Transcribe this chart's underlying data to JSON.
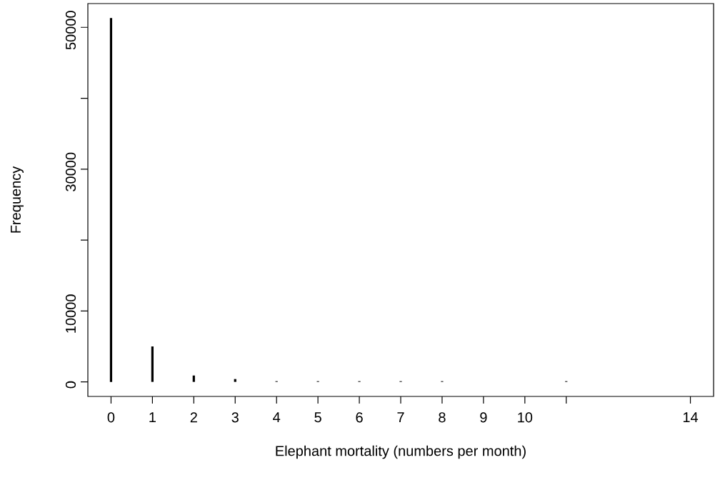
{
  "chart_data": {
    "type": "bar",
    "xlabel": "Elephant mortality (numbers per month)",
    "ylabel": "Frequency",
    "x": [
      0,
      1,
      2,
      3,
      4,
      5,
      6,
      7,
      8,
      11
    ],
    "values": [
      51300,
      5000,
      900,
      400,
      100,
      100,
      100,
      100,
      100,
      100
    ],
    "color": "#000000",
    "xlim": [
      -0.56,
      14.56
    ],
    "ylim": [
      -2050,
      53350
    ],
    "xticks": [
      0,
      1,
      2,
      3,
      4,
      5,
      6,
      7,
      8,
      9,
      10,
      {
        "value": 11,
        "label": null
      },
      14
    ],
    "yticks": [
      0,
      10000,
      {
        "value": 20000,
        "label": null
      },
      30000,
      {
        "value": 40000,
        "label": null
      },
      50000
    ],
    "grid": false
  }
}
